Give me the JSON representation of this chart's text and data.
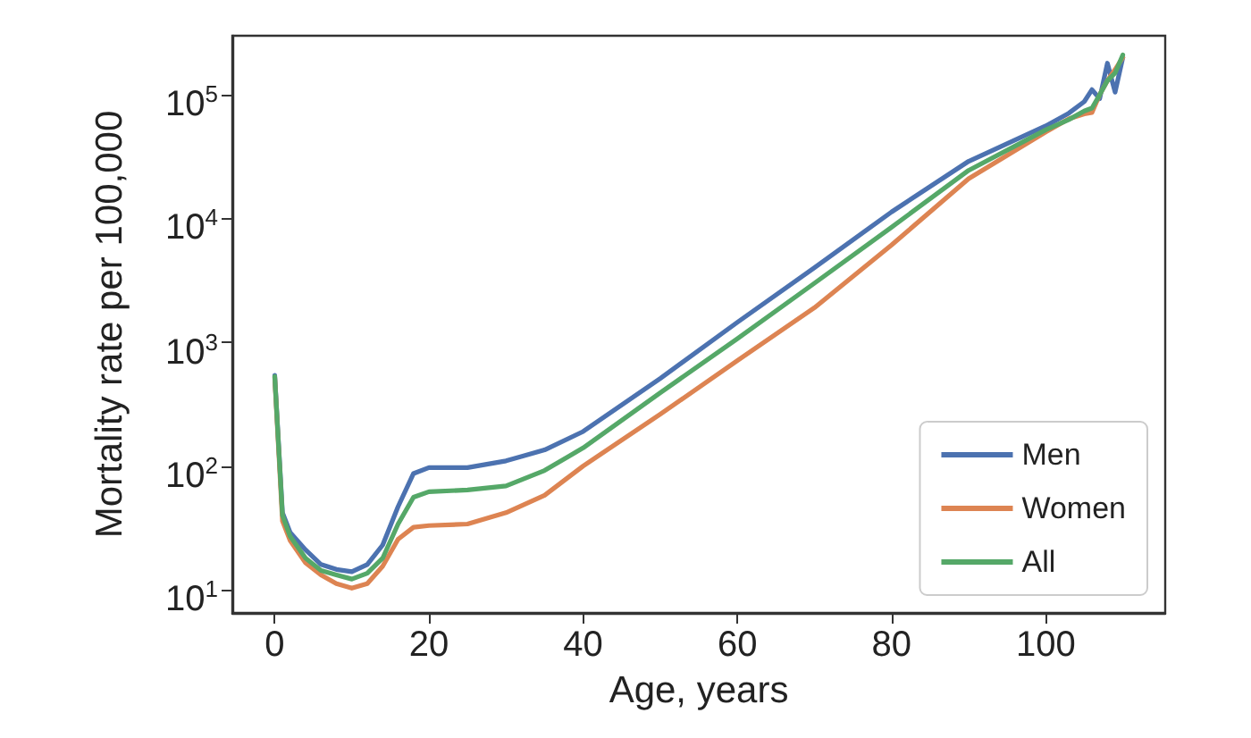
{
  "chart_data": {
    "type": "line",
    "xlabel": "Age, years",
    "ylabel": "Mortality rate per 100,000",
    "x": [
      0,
      1,
      2,
      4,
      6,
      8,
      10,
      12,
      14,
      16,
      18,
      20,
      25,
      30,
      35,
      40,
      50,
      60,
      70,
      80,
      90,
      100,
      103,
      105,
      106,
      107,
      108,
      109,
      110
    ],
    "series": [
      {
        "name": "Men",
        "color": "#4c72b0",
        "values": [
          540,
          42,
          29,
          21,
          16,
          14.6,
          14,
          16,
          23,
          47,
          87,
          97,
          97,
          110,
          135,
          190,
          510,
          1450,
          4000,
          11300,
          29000,
          56000,
          71000,
          88000,
          110000,
          93000,
          180000,
          105000,
          200000
        ]
      },
      {
        "name": "Women",
        "color": "#dd8452",
        "values": [
          520,
          36,
          25,
          16.5,
          13.2,
          11.2,
          10.3,
          11.2,
          15.5,
          25.6,
          32,
          33,
          34,
          42,
          58,
          100,
          262,
          710,
          1900,
          6100,
          21000,
          50000,
          64000,
          70000,
          72000,
          100000,
          130000,
          160000,
          200000
        ]
      },
      {
        "name": "All",
        "color": "#55a868",
        "values": [
          530,
          40,
          27,
          18,
          14.3,
          13.2,
          12.2,
          13.6,
          18,
          34,
          56,
          62,
          64,
          69,
          92,
          140,
          390,
          1070,
          3000,
          8500,
          24500,
          52000,
          63000,
          74000,
          78000,
          100000,
          130000,
          150000,
          210000
        ]
      }
    ],
    "xlim": [
      -5.5,
      115.5
    ],
    "xticks": [
      0,
      20,
      40,
      60,
      80,
      100
    ],
    "ylim": [
      6.5,
      300000
    ],
    "yticks": [
      {
        "value": 10,
        "label": "10$^{1}$"
      },
      {
        "value": 100,
        "label": "10$^{2}$"
      },
      {
        "value": 1000,
        "label": "10$^{3}$"
      },
      {
        "value": 10000,
        "label": "10$^{4}$"
      },
      {
        "value": 100000,
        "label": "10$^{5}$"
      }
    ],
    "log": "y",
    "grid": false,
    "legend": "bottom right",
    "marker": "none",
    "line_style": "solid"
  }
}
